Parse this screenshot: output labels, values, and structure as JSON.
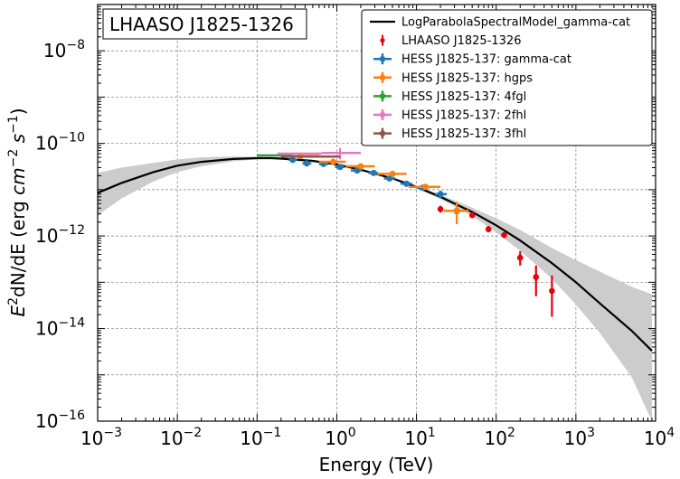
{
  "chart_data": {
    "type": "scatter",
    "title": "LHAASO J1825-1326",
    "xlabel": "Energy (TeV)",
    "ylabel_parts": [
      "E",
      "2",
      "dN/dE (erg ",
      "cm",
      "−2",
      " ",
      "s",
      "−1",
      ")"
    ],
    "xscale": "log",
    "yscale": "log",
    "xlim": [
      0.001,
      10000
    ],
    "ylim": [
      1e-16,
      1e-07
    ],
    "grid": true,
    "legend_position": "top-right",
    "x_ticks": [
      {
        "base": "10",
        "exp": "−3"
      },
      {
        "base": "10",
        "exp": "−2"
      },
      {
        "base": "10",
        "exp": "−1"
      },
      {
        "base": "10",
        "exp": "0"
      },
      {
        "base": "10",
        "exp": "1"
      },
      {
        "base": "10",
        "exp": "2"
      },
      {
        "base": "10",
        "exp": "3"
      },
      {
        "base": "10",
        "exp": "4"
      }
    ],
    "y_ticks": [
      {
        "base": "10",
        "exp": "−16"
      },
      {
        "base": "10",
        "exp": "−14"
      },
      {
        "base": "10",
        "exp": "−12"
      },
      {
        "base": "10",
        "exp": "−10"
      },
      {
        "base": "10",
        "exp": "−8"
      }
    ],
    "model": {
      "name": "LogParabolaSpectralModel_gamma-cat",
      "color": "#000000",
      "band_color": "#cccccc",
      "x": [
        0.001,
        0.002,
        0.005,
        0.01,
        0.02,
        0.05,
        0.1,
        0.15,
        0.2,
        0.5,
        1,
        2,
        5,
        10,
        20,
        50,
        100,
        200,
        500,
        1000,
        2000,
        5000,
        9000
      ],
      "y": [
        8.5e-12,
        1.4e-11,
        2.4e-11,
        3.3e-11,
        4e-11,
        4.6e-11,
        4.8e-11,
        4.8e-11,
        4.7e-11,
        4.2e-11,
        3.5e-11,
        2.7e-11,
        1.75e-11,
        1.15e-11,
        7e-12,
        3.3e-12,
        1.7e-12,
        8e-13,
        2.6e-13,
        1e-13,
        3.5e-14,
        9e-15,
        3.3e-15
      ],
      "band_lower": [
        2.8e-12,
        6.5e-12,
        1.5e-11,
        2.4e-11,
        3.2e-11,
        4.1e-11,
        4.5e-11,
        4.6e-11,
        4.5e-11,
        4e-11,
        3.35e-11,
        2.6e-11,
        1.68e-11,
        1.08e-11,
        6.3e-12,
        2.7e-12,
        1.2e-12,
        4.8e-13,
        1.2e-13,
        3.3e-14,
        8e-15,
        9e-16,
        1e-16
      ],
      "band_upper": [
        2.3e-11,
        3e-11,
        3.8e-11,
        4.5e-11,
        5e-11,
        5.2e-11,
        5.1e-11,
        5e-11,
        4.9e-11,
        4.4e-11,
        3.65e-11,
        2.8e-11,
        1.82e-11,
        1.22e-11,
        7.8e-12,
        4.1e-12,
        2.4e-12,
        1.35e-12,
        5.5e-13,
        3e-13,
        1.7e-13,
        8e-14,
        5.5e-14
      ]
    },
    "series": [
      {
        "name": "LHAASO J1825-1326",
        "color": "#e8000b",
        "marker": "point",
        "points": [
          {
            "x": 20,
            "y": 3.8e-12,
            "ylo": 3.2e-12,
            "yhi": 4.5e-12
          },
          {
            "x": 32,
            "y": 3.4e-12,
            "ylo": 2.9e-12,
            "yhi": 4e-12
          },
          {
            "x": 50,
            "y": 2.8e-12,
            "ylo": 2.5e-12,
            "yhi": 3.2e-12
          },
          {
            "x": 80,
            "y": 1.4e-12,
            "ylo": 1.2e-12,
            "yhi": 1.65e-12
          },
          {
            "x": 126,
            "y": 1.05e-12,
            "ylo": 9e-13,
            "yhi": 1.2e-12
          },
          {
            "x": 200,
            "y": 3.4e-13,
            "ylo": 2.3e-13,
            "yhi": 4.7e-13
          },
          {
            "x": 316,
            "y": 1.3e-13,
            "ylo": 5e-14,
            "yhi": 2.3e-13
          },
          {
            "x": 501,
            "y": 6.5e-14,
            "ylo": 1.8e-14,
            "yhi": 1.4e-13
          }
        ]
      },
      {
        "name": "HESS J1825-137: gamma-cat",
        "color": "#1f77b4",
        "marker": "dot",
        "points": [
          {
            "x": 0.28,
            "y": 4.4e-11,
            "xlo": 0.25,
            "xhi": 0.32
          },
          {
            "x": 0.42,
            "y": 3.7e-11,
            "xlo": 0.37,
            "xhi": 0.48
          },
          {
            "x": 0.68,
            "y": 3.6e-11,
            "xlo": 0.6,
            "xhi": 0.78
          },
          {
            "x": 1.1,
            "y": 3.1e-11,
            "xlo": 0.95,
            "xhi": 1.25
          },
          {
            "x": 1.8,
            "y": 2.6e-11,
            "xlo": 1.5,
            "xhi": 2.1
          },
          {
            "x": 2.9,
            "y": 2.3e-11,
            "xlo": 2.5,
            "xhi": 3.3
          },
          {
            "x": 4.6,
            "y": 1.75e-11,
            "xlo": 3.9,
            "xhi": 5.4
          },
          {
            "x": 7.5,
            "y": 1.35e-11,
            "xlo": 6.3,
            "xhi": 8.8
          },
          {
            "x": 12,
            "y": 1.1e-11,
            "xlo": 10,
            "xhi": 14
          },
          {
            "x": 20,
            "y": 8e-12,
            "xlo": 17,
            "xhi": 24,
            "ylo": 6.5e-12,
            "yhi": 9.5e-12
          },
          {
            "x": 32,
            "y": 3.5e-12,
            "xlo": 28,
            "xhi": 36
          }
        ]
      },
      {
        "name": "HESS J1825-137: hgps",
        "color": "#ff7f0e",
        "marker": "dot",
        "points": [
          {
            "x": 0.35,
            "y": 5.3e-11,
            "xlo": 0.2,
            "xhi": 0.6
          },
          {
            "x": 0.9,
            "y": 4e-11,
            "xlo": 0.6,
            "xhi": 1.3
          },
          {
            "x": 2.0,
            "y": 3.2e-11,
            "xlo": 1.3,
            "xhi": 3.0
          },
          {
            "x": 5.0,
            "y": 2.2e-11,
            "xlo": 3.2,
            "xhi": 7.5
          },
          {
            "x": 13,
            "y": 1.15e-11,
            "xlo": 8,
            "xhi": 20
          },
          {
            "x": 32,
            "y": 3.5e-12,
            "xlo": 22,
            "xhi": 45,
            "ylo": 1.8e-12,
            "yhi": 5.5e-12
          }
        ]
      },
      {
        "name": "HESS J1825-137: 4fgl",
        "color": "#2ca02c",
        "marker": "none",
        "points": [
          {
            "x": 0.15,
            "y": 5.5e-11,
            "xlo": 0.1,
            "xhi": 0.28
          }
        ]
      },
      {
        "name": "HESS J1825-137: 2fhl",
        "color": "#e377c2",
        "marker": "none",
        "points": [
          {
            "x": 0.35,
            "y": 6e-11,
            "xlo": 0.18,
            "xhi": 0.65
          },
          {
            "x": 1.1,
            "y": 6.2e-11,
            "xlo": 0.65,
            "xhi": 2.0,
            "ylo": 4.5e-11,
            "yhi": 8e-11
          }
        ]
      },
      {
        "name": "HESS J1825-137: 3fhl",
        "color": "#8c564b",
        "marker": "none",
        "points": [
          {
            "x": 0.5,
            "y": 5.2e-11,
            "xlo": 0.2,
            "xhi": 1.1
          }
        ]
      }
    ]
  }
}
